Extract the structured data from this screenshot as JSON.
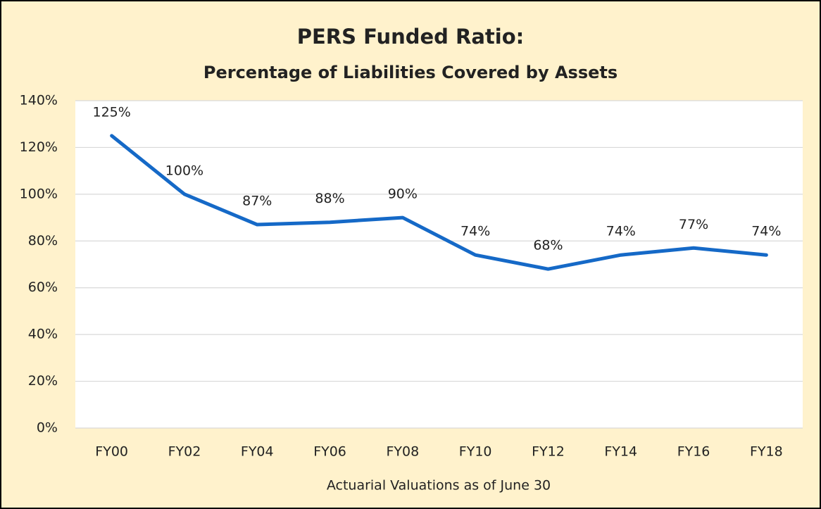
{
  "chart_data": {
    "type": "line",
    "title": "PERS Funded Ratio:",
    "subtitle": "Percentage of Liabilities Covered by Assets",
    "x_label": "Actuarial Valuations as of June 30",
    "categories": [
      "FY00",
      "FY02",
      "FY04",
      "FY06",
      "FY08",
      "FY10",
      "FY12",
      "FY14",
      "FY16",
      "FY18"
    ],
    "values": [
      125,
      100,
      87,
      88,
      90,
      74,
      68,
      74,
      77,
      74
    ],
    "value_labels": [
      "125%",
      "100%",
      "87%",
      "88%",
      "90%",
      "74%",
      "68%",
      "74%",
      "77%",
      "74%"
    ],
    "color": "#1569c7",
    "ylim": [
      0,
      140
    ],
    "yticks": [
      {
        "value": 0,
        "label": "0%"
      },
      {
        "value": 20,
        "label": "20%"
      },
      {
        "value": 40,
        "label": "40%"
      },
      {
        "value": 60,
        "label": "60%"
      },
      {
        "value": 80,
        "label": "80%"
      },
      {
        "value": 100,
        "label": "100%"
      },
      {
        "value": 120,
        "label": "120%"
      },
      {
        "value": 140,
        "label": "140%"
      }
    ],
    "grid": true
  }
}
